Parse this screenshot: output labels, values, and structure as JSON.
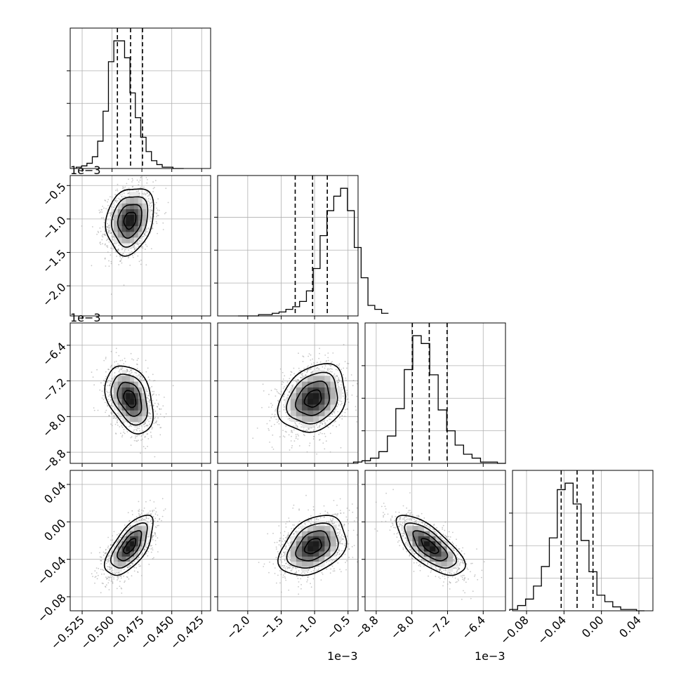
{
  "chart_data": {
    "type": "corner",
    "parameters": [
      {
        "range": [
          -0.535,
          -0.4175
        ],
        "ticks": [
          -0.525,
          -0.5,
          -0.475,
          -0.45,
          -0.425
        ],
        "tick_labels": [
          "−0.525",
          "−0.500",
          "−0.475",
          "−0.450",
          "−0.425"
        ],
        "offset": "",
        "mean": -0.485,
        "sd": 0.01,
        "quantiles": [
          -0.4955,
          -0.4845,
          -0.4745
        ],
        "hist_counts": [
          1,
          2,
          4,
          9,
          21,
          44,
          82,
          98,
          98,
          85,
          58,
          39,
          24,
          13,
          6,
          3,
          1,
          1,
          0,
          0
        ]
      },
      {
        "range": [
          -2.45,
          -0.35
        ],
        "ticks": [
          -2.0,
          -1.5,
          -1.0,
          -0.5
        ],
        "tick_labels": [
          "−2.0",
          "−1.5",
          "−1.0",
          "−0.5"
        ],
        "offset": "1e−3",
        "mean": -1.02,
        "sd": 0.25,
        "quantiles": [
          -1.29,
          -1.03,
          -0.81
        ],
        "hist_counts": [
          0,
          0,
          0,
          1,
          1,
          2,
          3,
          5,
          7,
          11,
          19,
          36,
          61,
          80,
          91,
          97,
          80,
          52,
          29,
          8,
          5,
          2
        ]
      },
      {
        "range": [
          -9.05,
          -5.9
        ],
        "ticks": [
          -8.8,
          -8.0,
          -7.2,
          -6.4
        ],
        "tick_labels": [
          "−8.8",
          "−8.0",
          "−7.2",
          "−6.4"
        ],
        "offset": "1e−3",
        "mean": -7.6,
        "sd": 0.38,
        "quantiles": [
          -7.99,
          -7.61,
          -7.21
        ],
        "hist_counts": [
          1,
          2,
          4,
          9,
          21,
          42,
          72,
          98,
          92,
          68,
          41,
          25,
          14,
          7,
          4,
          1,
          1,
          0
        ]
      },
      {
        "range": [
          -0.095,
          0.055
        ],
        "ticks": [
          -0.08,
          -0.04,
          0.0,
          0.04
        ],
        "tick_labels": [
          "−0.08",
          "−0.04",
          "0.00",
          "0.04"
        ],
        "offset": "",
        "mean": -0.026,
        "sd": 0.016,
        "quantiles": [
          -0.043,
          -0.026,
          -0.009
        ],
        "hist_counts": [
          1,
          4,
          9,
          19,
          34,
          56,
          93,
          98,
          82,
          54,
          30,
          12,
          7,
          3,
          1,
          1,
          0
        ]
      }
    ],
    "correlations": [
      [
        1,
        0.2,
        -0.35,
        0.65
      ],
      [
        0.2,
        1,
        0.25,
        0.35
      ],
      [
        -0.35,
        0.25,
        1,
        -0.7
      ],
      [
        0.65,
        0.35,
        -0.7,
        1
      ]
    ],
    "grid": true,
    "quantile_style": "dashed"
  }
}
